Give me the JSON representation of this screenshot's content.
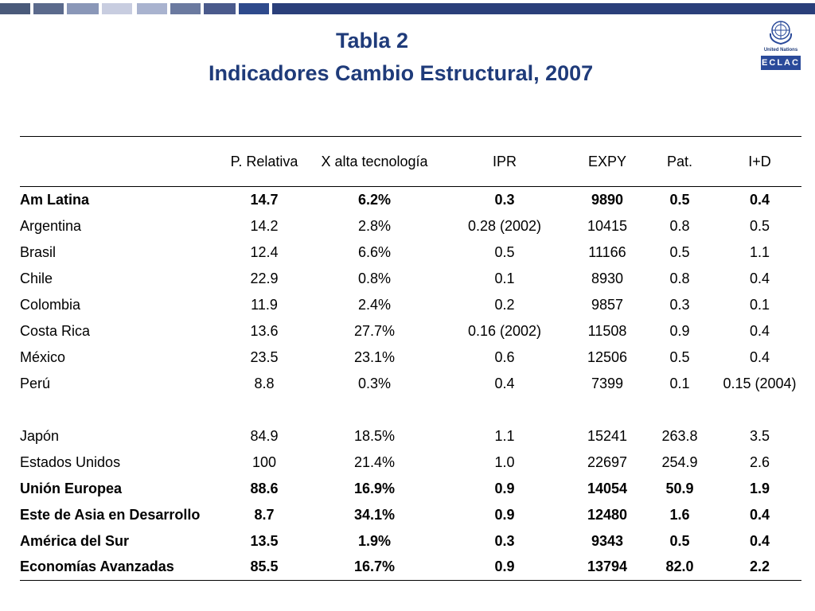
{
  "title": "Tabla 2",
  "subtitle": "Indicadores Cambio Estructural, 2007",
  "logo": {
    "un_text": "United Nations",
    "eclac_text": "ECLAC"
  },
  "colors": {
    "title": "#1f3b7a",
    "topbar": [
      "#4a5a7a",
      "#5b6a8c",
      "#8a97b8",
      "#c8cde0",
      "#a9b3cf",
      "#6b7aa0",
      "#4a5a8c",
      "#2e4a8c",
      "#2a3f7a"
    ]
  },
  "table": {
    "headers": [
      "",
      "P. Relativa",
      "X alta tecnología",
      "IPR",
      "EXPY",
      "Pat.",
      "I+D"
    ],
    "rows": [
      {
        "cells": [
          "Am Latina",
          "14.7",
          "6.2%",
          "0.3",
          "9890",
          "0.5",
          "0.4"
        ],
        "bold": true
      },
      {
        "cells": [
          "Argentina",
          "14.2",
          "2.8%",
          "0.28 (2002)",
          "10415",
          "0.8",
          "0.5"
        ],
        "bold": false
      },
      {
        "cells": [
          "Brasil",
          "12.4",
          "6.6%",
          "0.5",
          "11166",
          "0.5",
          "1.1"
        ],
        "bold": false
      },
      {
        "cells": [
          "Chile",
          "22.9",
          "0.8%",
          "0.1",
          "8930",
          "0.8",
          "0.4"
        ],
        "bold": false
      },
      {
        "cells": [
          "Colombia",
          "11.9",
          "2.4%",
          "0.2",
          "9857",
          "0.3",
          "0.1"
        ],
        "bold": false
      },
      {
        "cells": [
          "Costa Rica",
          "13.6",
          "27.7%",
          "0.16 (2002)",
          "11508",
          "0.9",
          "0.4"
        ],
        "bold": false
      },
      {
        "cells": [
          "México",
          "23.5",
          "23.1%",
          "0.6",
          "12506",
          "0.5",
          "0.4"
        ],
        "bold": false
      },
      {
        "cells": [
          "Perú",
          "8.8",
          "0.3%",
          "0.4",
          "7399",
          "0.1",
          "0.15 (2004)"
        ],
        "bold": false
      },
      {
        "cells": [
          "",
          "",
          "",
          "",
          "",
          "",
          ""
        ],
        "bold": false,
        "gap": true
      },
      {
        "cells": [
          "Japón",
          "84.9",
          "18.5%",
          "1.1",
          "15241",
          "263.8",
          "3.5"
        ],
        "bold": false
      },
      {
        "cells": [
          "Estados Unidos",
          "100",
          "21.4%",
          "1.0",
          "22697",
          "254.9",
          "2.6"
        ],
        "bold": false
      },
      {
        "cells": [
          "Unión Europea",
          "88.6",
          "16.9%",
          "0.9",
          "14054",
          "50.9",
          "1.9"
        ],
        "bold": true
      },
      {
        "cells": [
          "Este de Asia en Desarrollo",
          "8.7",
          "34.1%",
          "0.9",
          "12480",
          "1.6",
          "0.4"
        ],
        "bold": true
      },
      {
        "cells": [
          "América del Sur",
          "13.5",
          "1.9%",
          "0.3",
          "9343",
          "0.5",
          "0.4"
        ],
        "bold": true
      },
      {
        "cells": [
          "Economías Avanzadas",
          "85.5",
          "16.7%",
          "0.9",
          "13794",
          "82.0",
          "2.2"
        ],
        "bold": true
      }
    ]
  }
}
